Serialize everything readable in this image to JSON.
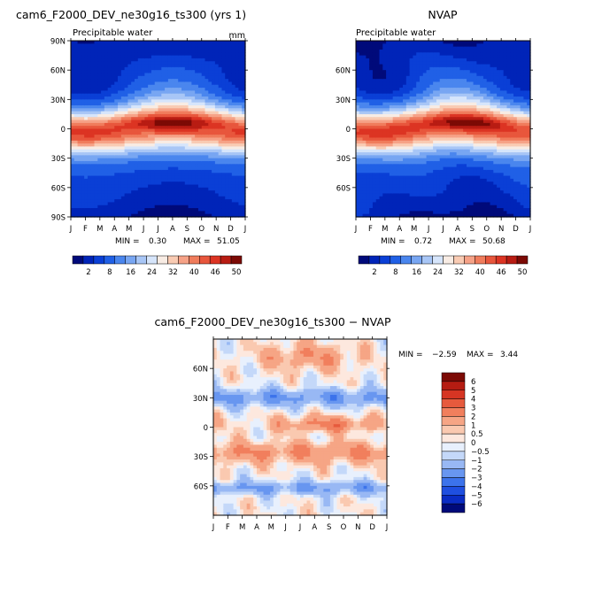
{
  "months": [
    "J",
    "F",
    "M",
    "A",
    "M",
    "J",
    "J",
    "A",
    "S",
    "O",
    "N",
    "D",
    "J"
  ],
  "chart_data": [
    {
      "type": "heatmap",
      "title": "cam6_F2000_DEV_ne30g16_ts300 (yrs 1)",
      "subtitle": "Precipitable water",
      "units": "mm",
      "y_ticks": [
        "90N",
        "60N",
        "30N",
        "0",
        "30S",
        "60S",
        "90S"
      ],
      "ylim": [
        -90,
        90
      ],
      "min_label": "MIN =",
      "min_value": "0.30",
      "max_label": "MAX =",
      "max_value": "51.05",
      "min": 0.3,
      "max": 51.05,
      "colorbar_labels": [
        "2",
        "8",
        "16",
        "24",
        "32",
        "40",
        "46",
        "50"
      ],
      "pattern": "pw_model"
    },
    {
      "type": "heatmap",
      "title": "NVAP",
      "subtitle": "Precipitable water",
      "units": "",
      "y_ticks": [
        "60N",
        "30N",
        "0",
        "30S",
        "60S"
      ],
      "ylim": [
        -90,
        90
      ],
      "min_label": "MIN =",
      "min_value": "0.72",
      "max_label": "MAX =",
      "max_value": "50.68",
      "min": 0.72,
      "max": 50.68,
      "colorbar_labels": [
        "2",
        "8",
        "16",
        "24",
        "32",
        "40",
        "46",
        "50"
      ],
      "pattern": "pw_obs"
    },
    {
      "type": "heatmap",
      "title": "cam6_F2000_DEV_ne30g16_ts300 − NVAP",
      "subtitle": "",
      "y_ticks": [
        "60N",
        "30N",
        "0",
        "30S",
        "60S"
      ],
      "ylim": [
        -90,
        90
      ],
      "min_label": "MIN =",
      "min_value": "−2.59",
      "max_label": "MAX =",
      "max_value": "3.44",
      "min": -2.59,
      "max": 3.44,
      "colorbar_labels": [
        "6",
        "5",
        "4",
        "3",
        "2",
        "1",
        "0.5",
        "0",
        "−0.5",
        "−1",
        "−2",
        "−3",
        "−4",
        "−5",
        "−6"
      ],
      "pattern": "diff"
    }
  ],
  "colors": {
    "pw_scale": [
      "#000a7a",
      "#0024b8",
      "#0a3fd6",
      "#2060e6",
      "#4a86ee",
      "#78a6f2",
      "#a8c6f6",
      "#d6e5fb",
      "#f8ece4",
      "#f9cbb3",
      "#f6a287",
      "#f07c5c",
      "#e8563c",
      "#dc3423",
      "#b81c13",
      "#7c0a05"
    ],
    "diff_scale": [
      "#000a7a",
      "#0a2cc4",
      "#1f4fe0",
      "#3c73eb",
      "#6896f0",
      "#98b8f4",
      "#c4d8f9",
      "#e8f0fd",
      "#fde8de",
      "#fac9b0",
      "#f6a585",
      "#f17f5d",
      "#e65a3d",
      "#d63523",
      "#b51c12",
      "#7c0a05"
    ]
  }
}
